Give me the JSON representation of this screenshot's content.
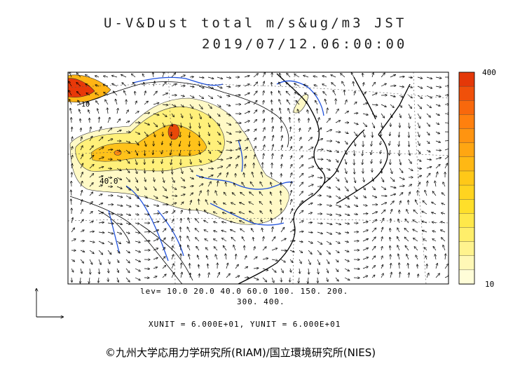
{
  "title_line1": "U-V&Dust total m/s&ug/m3 JST",
  "title_line2": "2019/07/12.06:00:00",
  "levels_line1": "lev= 10.0 20.0 40.0 60.0 100. 150. 200.",
  "levels_line2": "300. 400.",
  "units_line": "XUNIT = 6.000E+01, YUNIT = 6.000E+01",
  "credit": "©九州大学応用力学研究所(RIAM)/国立環境研究所(NIES)",
  "colorbar": {
    "max_label": "400",
    "min_label": "10",
    "colors": [
      "#fffdd8",
      "#fff8b6",
      "#fff38e",
      "#ffee6a",
      "#ffe84a",
      "#ffdf2a",
      "#ffd420",
      "#ffc818",
      "#ffb814",
      "#ffa612",
      "#ff9410",
      "#ff800e",
      "#f8680c",
      "#f0500a",
      "#e43808"
    ]
  },
  "contour_labels": [
    "40.0",
    "10"
  ],
  "map": {
    "region": "East Asia",
    "field": "dust",
    "colors": {
      "coast": "#000000",
      "river": "#1e50dc",
      "border": "#000000"
    }
  }
}
